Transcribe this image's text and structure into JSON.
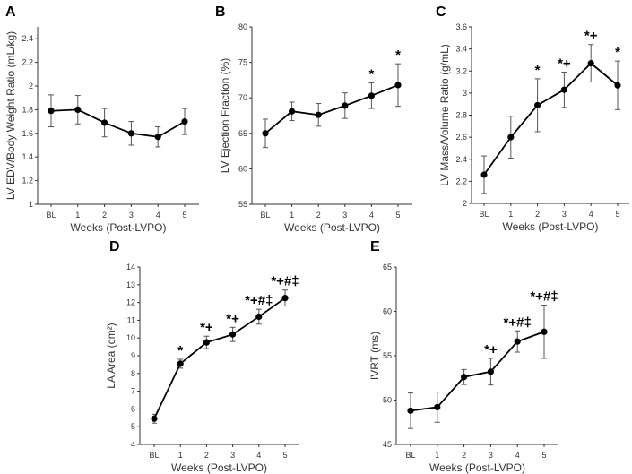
{
  "chart_data": [
    {
      "panel": "A",
      "type": "line",
      "ylabel": "LV EDV/Body Weight Ratio (mL/kg)",
      "xlabel": "Weeks (Post-LVPO)",
      "categories": [
        "BL",
        "1",
        "2",
        "3",
        "4",
        "5"
      ],
      "values": [
        1.79,
        1.8,
        1.69,
        1.6,
        1.57,
        1.7
      ],
      "errors": [
        0.135,
        0.12,
        0.12,
        0.1,
        0.085,
        0.11
      ],
      "ylim": [
        1,
        2.5
      ],
      "yticks": [
        "1",
        "1.2",
        "1.4",
        "1.6",
        "1.8",
        "2",
        "2.2",
        "2.4"
      ],
      "annotations": [
        "",
        "",
        "",
        "",
        "",
        ""
      ]
    },
    {
      "panel": "B",
      "type": "line",
      "ylabel": "LV Ejection Fraction (%)",
      "xlabel": "Weeks (Post-LVPO)",
      "categories": [
        "BL",
        "1",
        "2",
        "3",
        "4",
        "5"
      ],
      "values": [
        65.0,
        68.1,
        67.6,
        68.9,
        70.3,
        71.8
      ],
      "errors": [
        2.0,
        1.3,
        1.6,
        1.8,
        1.8,
        3.0
      ],
      "ylim": [
        55,
        80
      ],
      "yticks": [
        "55",
        "60",
        "65",
        "70",
        "75",
        "80"
      ],
      "annotations": [
        "",
        "",
        "",
        "",
        "*",
        "*"
      ]
    },
    {
      "panel": "C",
      "type": "line",
      "ylabel": "LV Mass/Volume Ratio (g/mL)",
      "xlabel": "Weeks (Post-LVPO)",
      "categories": [
        "BL",
        "1",
        "2",
        "3",
        "4",
        "5"
      ],
      "values": [
        2.26,
        2.6,
        2.89,
        3.03,
        3.27,
        3.07
      ],
      "errors": [
        0.17,
        0.19,
        0.24,
        0.16,
        0.17,
        0.22
      ],
      "ylim": [
        2,
        3.6
      ],
      "yticks": [
        "2",
        "2.2",
        "2.4",
        "2.6",
        "2.8",
        "3",
        "3.2",
        "3.4",
        "3.6"
      ],
      "annotations": [
        "",
        "",
        "*",
        "*+",
        "*+",
        "*"
      ]
    },
    {
      "panel": "D",
      "type": "line",
      "ylabel": "LA Area (cm²)",
      "xlabel": "Weeks (Post-LVPO)",
      "categories": [
        "BL",
        "1",
        "2",
        "3",
        "4",
        "5"
      ],
      "values": [
        5.45,
        8.55,
        9.75,
        10.2,
        11.2,
        12.25
      ],
      "errors": [
        0.25,
        0.25,
        0.35,
        0.4,
        0.42,
        0.45
      ],
      "ylim": [
        4,
        14
      ],
      "yticks": [
        "4",
        "5",
        "6",
        "7",
        "8",
        "9",
        "10",
        "11",
        "12",
        "13",
        "14"
      ],
      "annotations": [
        "",
        "*",
        "*+",
        "*+",
        "*+#‡",
        "*+#‡"
      ]
    },
    {
      "panel": "E",
      "type": "line",
      "ylabel": "IVRT (ms)",
      "xlabel": "Weeks (Post-LVPO)",
      "categories": [
        "BL",
        "1",
        "2",
        "3",
        "4",
        "5"
      ],
      "values": [
        48.8,
        49.2,
        52.6,
        53.2,
        56.6,
        57.7
      ],
      "errors": [
        2.0,
        1.7,
        0.85,
        1.5,
        1.2,
        3.0
      ],
      "ylim": [
        45,
        65
      ],
      "yticks": [
        "45",
        "50",
        "55",
        "60",
        "65"
      ],
      "annotations": [
        "",
        "",
        "",
        "*+",
        "*+#‡",
        "*+#‡"
      ]
    }
  ]
}
